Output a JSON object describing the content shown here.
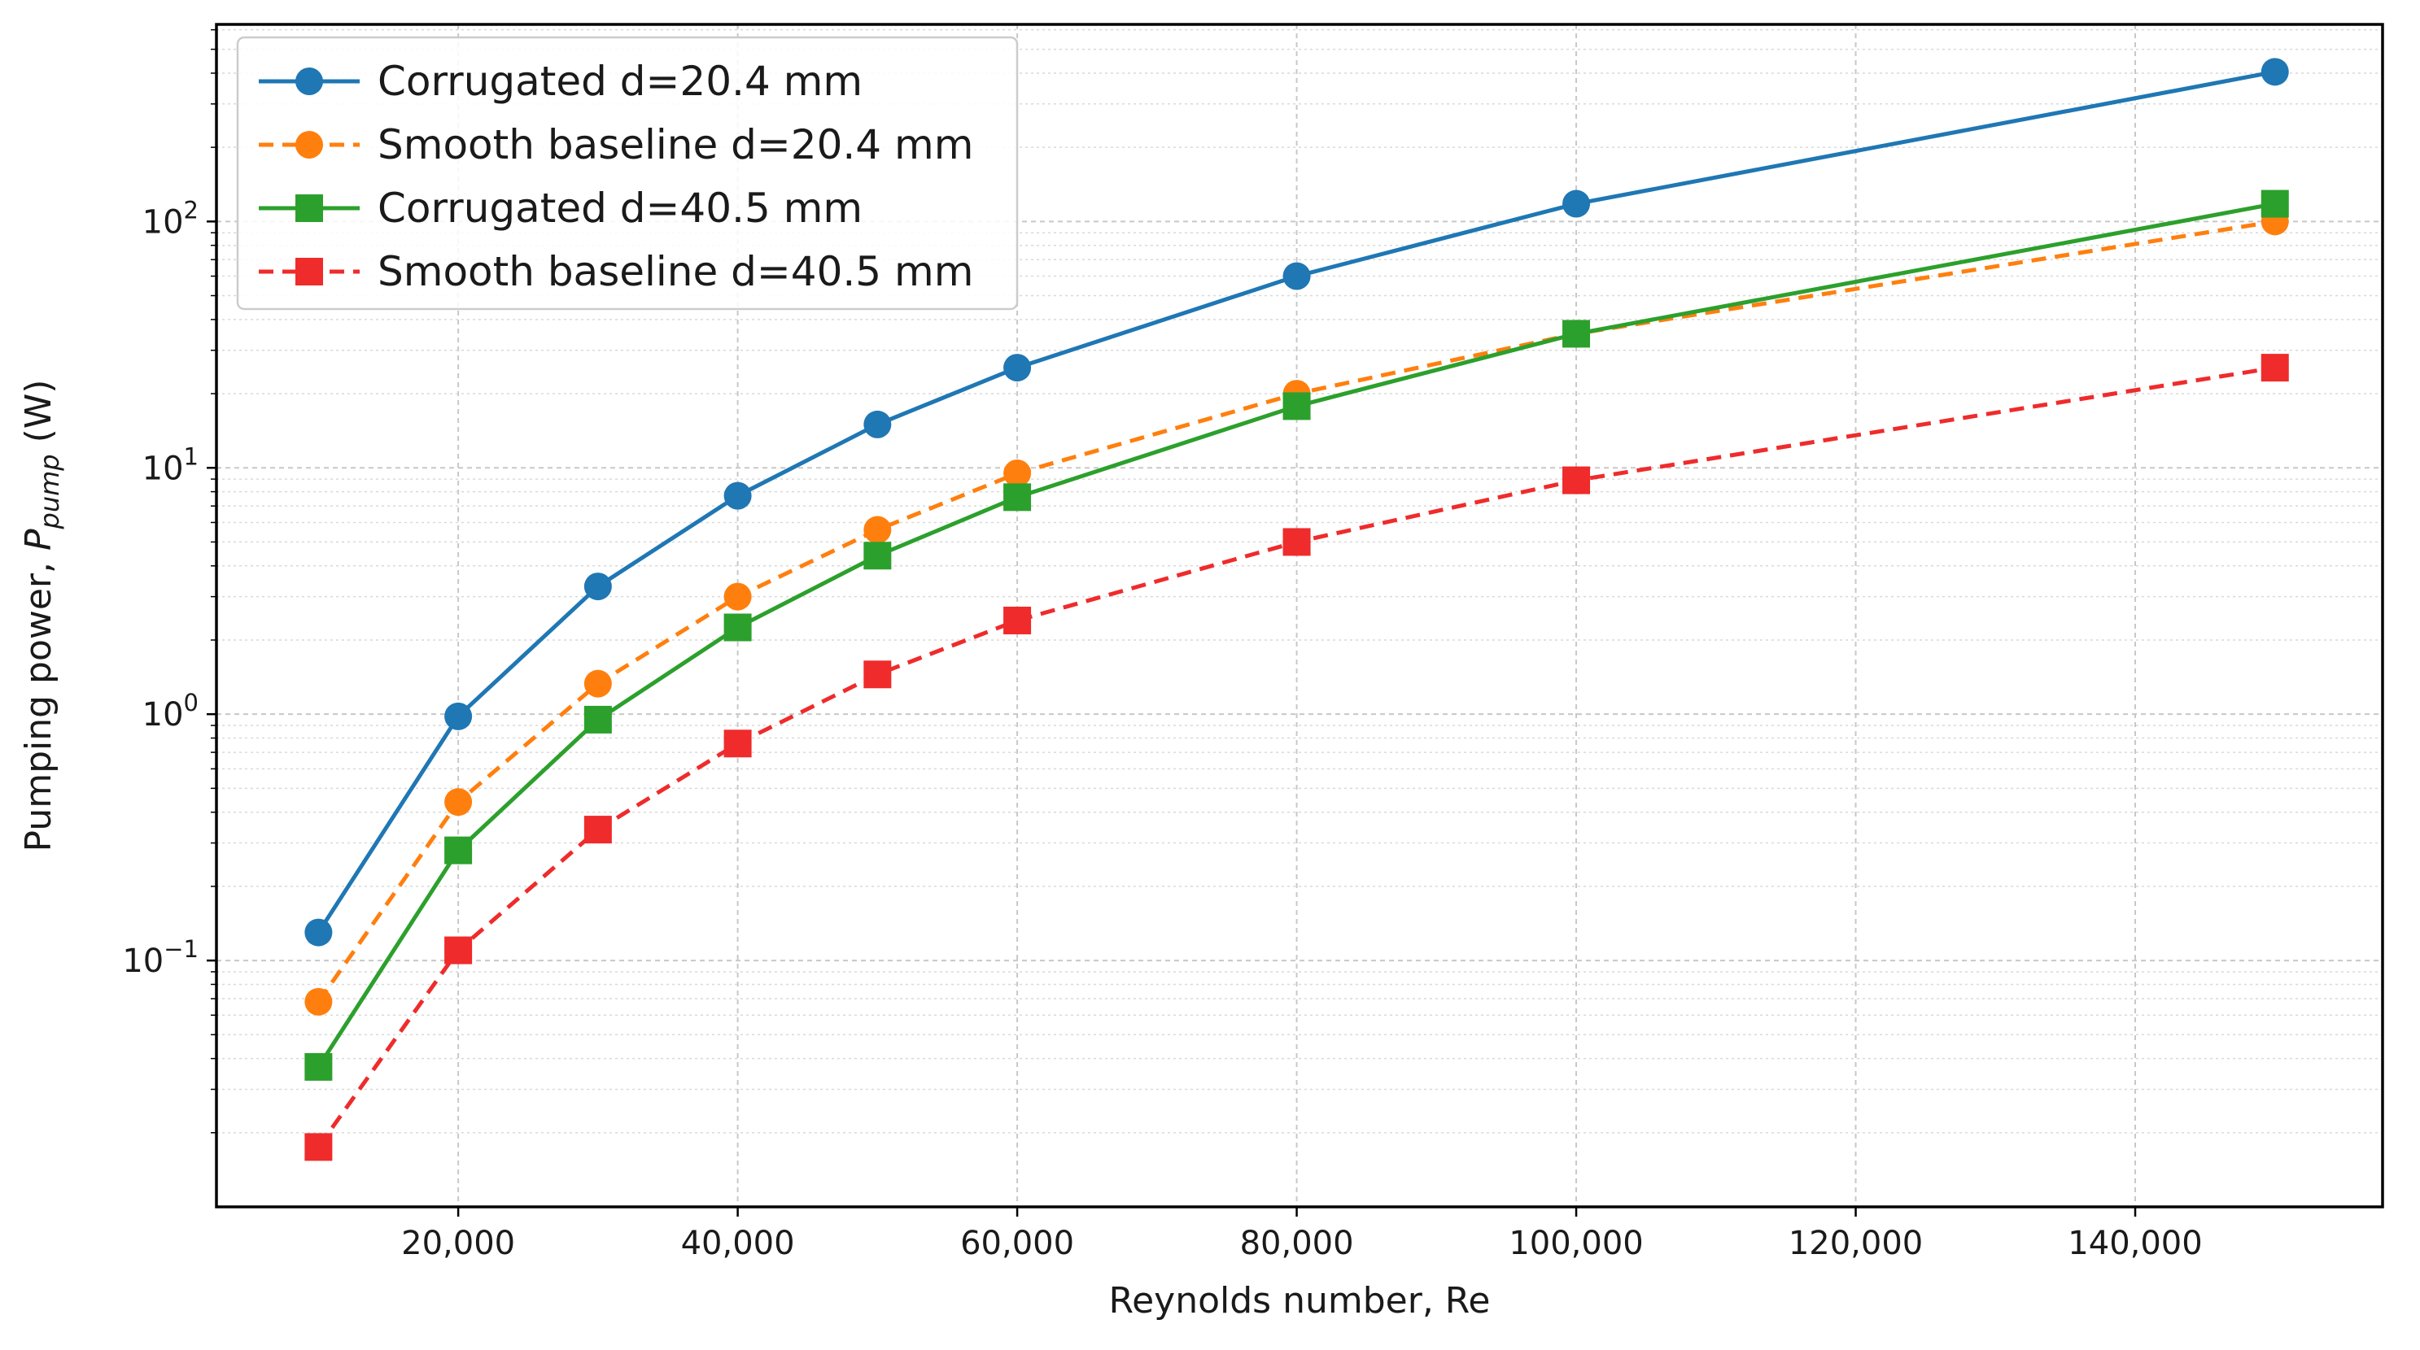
{
  "chart_data": {
    "type": "line",
    "xlabel": "Reynolds number, Re",
    "ylabel_main": "Pumping power, ",
    "ylabel_symbol": "P",
    "ylabel_subscript": "pump",
    "ylabel_unit": " (W)",
    "xlim": [
      2700,
      157700
    ],
    "ylim_log10": [
      -2.0,
      2.8
    ],
    "y_scale": "log",
    "x_ticks": [
      {
        "value": 20000,
        "label": "20,000"
      },
      {
        "value": 40000,
        "label": "40,000"
      },
      {
        "value": 60000,
        "label": "60,000"
      },
      {
        "value": 80000,
        "label": "80,000"
      },
      {
        "value": 100000,
        "label": "100,000"
      },
      {
        "value": 120000,
        "label": "120,000"
      },
      {
        "value": 140000,
        "label": "140,000"
      }
    ],
    "y_ticks": [
      {
        "value": 0.1,
        "base": "10",
        "exp": "−1"
      },
      {
        "value": 1,
        "base": "10",
        "exp": "0"
      },
      {
        "value": 10,
        "base": "10",
        "exp": "1"
      },
      {
        "value": 100,
        "base": "10",
        "exp": "2"
      }
    ],
    "grid": true,
    "legend_position": "top-left",
    "x": [
      10000,
      20000,
      30000,
      40000,
      50000,
      60000,
      80000,
      100000,
      150000
    ],
    "series": [
      {
        "name": "Corrugated d=20.4 mm",
        "color": "#1f77b4",
        "marker": "circle",
        "dash": "solid",
        "values": [
          0.13,
          0.98,
          3.3,
          7.7,
          15,
          25.5,
          60,
          118,
          405
        ]
      },
      {
        "name": "Smooth baseline d=20.4 mm",
        "color": "#ff7f0e",
        "marker": "circle",
        "dash": "dashed",
        "values": [
          0.068,
          0.44,
          1.33,
          3.0,
          5.6,
          9.5,
          20,
          35,
          100
        ]
      },
      {
        "name": "Corrugated d=40.5 mm",
        "color": "#2ca02c",
        "marker": "square",
        "dash": "solid",
        "values": [
          0.037,
          0.28,
          0.95,
          2.25,
          4.4,
          7.6,
          17.8,
          35,
          118
        ]
      },
      {
        "name": "Smooth baseline d=40.5 mm",
        "color": "#ef2b2b",
        "marker": "square",
        "dash": "dashed",
        "values": [
          0.0175,
          0.11,
          0.34,
          0.76,
          1.45,
          2.4,
          5.0,
          8.9,
          25.5
        ]
      }
    ]
  }
}
